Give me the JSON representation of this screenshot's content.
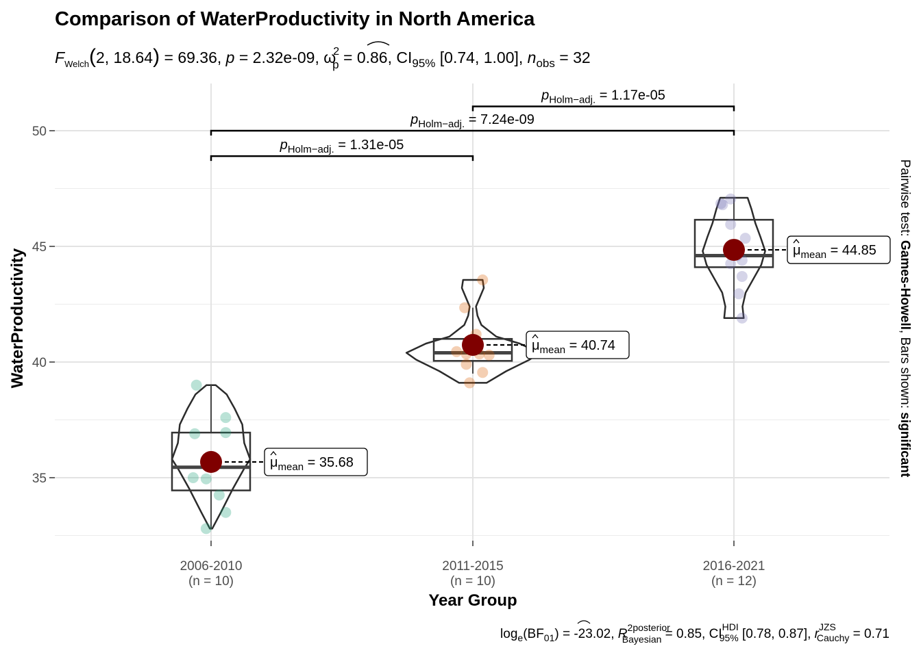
{
  "chart_data": {
    "type": "violin-box-scatter",
    "title": "Comparison of WaterProductivity in North America",
    "subtitle": {
      "F_label": "F",
      "F_sub": "Welch",
      "dfs": "2, 18.64",
      "F_value": "69.36",
      "p_label": "p",
      "p_value": "2.32e-09",
      "omega_label": "ω",
      "omega_sup": "2",
      "omega_sub": "p",
      "omega_value": "0.86",
      "ci_label": "CI",
      "ci_sub": "95%",
      "ci_value": "[0.74, 1.00]",
      "n_label": "n",
      "n_sub": "obs",
      "n_value": "32"
    },
    "xlabel": "Year Group",
    "ylabel": "WaterProductivity",
    "y_ticks": [
      35,
      40,
      45,
      50
    ],
    "ylim": [
      32.5,
      52.0
    ],
    "grid": true,
    "right_caption": {
      "prefix": "Pairwise test: ",
      "test": "Games-Howell",
      "middle": ", Bars shown: ",
      "shown": "significant"
    },
    "bottom_caption": {
      "log_label": "log",
      "log_sub": "e",
      "bf_label": "(BF",
      "bf_sub": "01",
      "bf_value": ") = -23.02, ",
      "r2_label": "R",
      "r2_sup": "2",
      "r2_sup2": "posterior",
      "r2_sub": "Bayesian",
      "r2_value": " = 0.85, ",
      "ci_label": "CI",
      "ci_sup": "HDI",
      "ci_sub": "95%",
      "ci_value": " [0.78, 0.87], ",
      "r_label": "r",
      "r_sup": "JZS",
      "r_sub": "Cauchy",
      "r_value": " = 0.71"
    },
    "groups": [
      {
        "name": "2006-2010",
        "n_label": "(n = 10)",
        "color": "#1B9E77",
        "mean": 35.68,
        "mean_label": "35.68",
        "box": {
          "q1": 34.45,
          "median": 35.45,
          "q3": 36.95,
          "whisker_low": 32.8,
          "whisker_high": 39.0
        },
        "violin": {
          "min": 32.8,
          "max": 39.0,
          "width": [
            [
              32.8,
              0.03
            ],
            [
              33.5,
              0.25
            ],
            [
              34.5,
              0.55
            ],
            [
              35.4,
              0.85
            ],
            [
              35.8,
              1.0
            ],
            [
              36.5,
              0.85
            ],
            [
              37.3,
              0.8
            ],
            [
              38.0,
              0.6
            ],
            [
              38.6,
              0.4
            ],
            [
              39.0,
              0.12
            ]
          ]
        },
        "points": [
          [
            -0.09,
            39.0
          ],
          [
            -0.1,
            36.9
          ],
          [
            0.09,
            37.6
          ],
          [
            0.09,
            36.95
          ],
          [
            -0.11,
            35.0
          ],
          [
            -0.03,
            34.95
          ],
          [
            0.05,
            34.25
          ],
          [
            0.09,
            33.5
          ],
          [
            -0.03,
            32.8
          ],
          [
            0.02,
            35.7
          ]
        ]
      },
      {
        "name": "2011-2015",
        "n_label": "(n = 10)",
        "color": "#D95F02",
        "mean": 40.74,
        "mean_label": "40.74",
        "box": {
          "q1": 40.05,
          "median": 40.4,
          "q3": 41.0,
          "whisker_low": 39.5,
          "whisker_high": 42.35
        },
        "violin": {
          "min": 39.1,
          "max": 43.55,
          "width": [
            [
              39.1,
              0.35
            ],
            [
              39.6,
              0.85
            ],
            [
              40.1,
              1.45
            ],
            [
              40.4,
              1.7
            ],
            [
              40.8,
              1.2
            ],
            [
              41.1,
              0.6
            ],
            [
              41.6,
              0.22
            ],
            [
              42.0,
              0.12
            ],
            [
              42.4,
              0.08
            ],
            [
              42.8,
              0.18
            ],
            [
              43.2,
              0.28
            ],
            [
              43.55,
              0.25
            ]
          ]
        },
        "points": [
          [
            0.06,
            43.55
          ],
          [
            -0.05,
            42.35
          ],
          [
            0.02,
            41.2
          ],
          [
            -0.1,
            40.45
          ],
          [
            -0.04,
            40.35
          ],
          [
            0.04,
            40.35
          ],
          [
            0.1,
            40.3
          ],
          [
            -0.04,
            39.9
          ],
          [
            0.06,
            39.55
          ],
          [
            -0.02,
            39.1
          ]
        ]
      },
      {
        "name": "2016-2021",
        "n_label": "(n = 12)",
        "color": "#7570B3",
        "mean": 44.85,
        "mean_label": "44.85",
        "box": {
          "q1": 44.1,
          "median": 44.6,
          "q3": 46.15,
          "whisker_low": 41.9,
          "whisker_high": 47.1
        },
        "violin": {
          "min": 41.9,
          "max": 47.1,
          "width": [
            [
              41.9,
              0.25
            ],
            [
              42.4,
              0.22
            ],
            [
              43.0,
              0.3
            ],
            [
              43.6,
              0.5
            ],
            [
              44.2,
              0.7
            ],
            [
              44.8,
              0.8
            ],
            [
              45.4,
              0.68
            ],
            [
              46.0,
              0.55
            ],
            [
              46.6,
              0.45
            ],
            [
              47.1,
              0.35
            ]
          ]
        },
        "points": [
          [
            -0.07,
            46.8
          ],
          [
            -0.02,
            47.05
          ],
          [
            -0.02,
            45.95
          ],
          [
            0.07,
            45.35
          ],
          [
            0.02,
            44.6
          ],
          [
            0.05,
            44.4
          ],
          [
            -0.02,
            44.25
          ],
          [
            0.05,
            43.7
          ],
          [
            0.03,
            42.95
          ],
          [
            0.05,
            41.9
          ],
          [
            0.0,
            44.8
          ],
          [
            -0.08,
            46.85
          ]
        ]
      }
    ],
    "comparisons": [
      {
        "from": 0,
        "to": 1,
        "y": 48.9,
        "label_p": "p",
        "label_sub": "Holm−adj.",
        "label_value": " = 1.31e-05"
      },
      {
        "from": 0,
        "to": 2,
        "y": 50.0,
        "label_p": "p",
        "label_sub": "Holm−adj.",
        "label_value": " = 7.24e-09"
      },
      {
        "from": 1,
        "to": 2,
        "y": 51.05,
        "label_p": "p",
        "label_sub": "Holm−adj.",
        "label_value": " = 1.17e-05"
      }
    ],
    "mean_prefix": "μ",
    "mean_sub": "mean",
    "mean_color": "#7F0000"
  }
}
